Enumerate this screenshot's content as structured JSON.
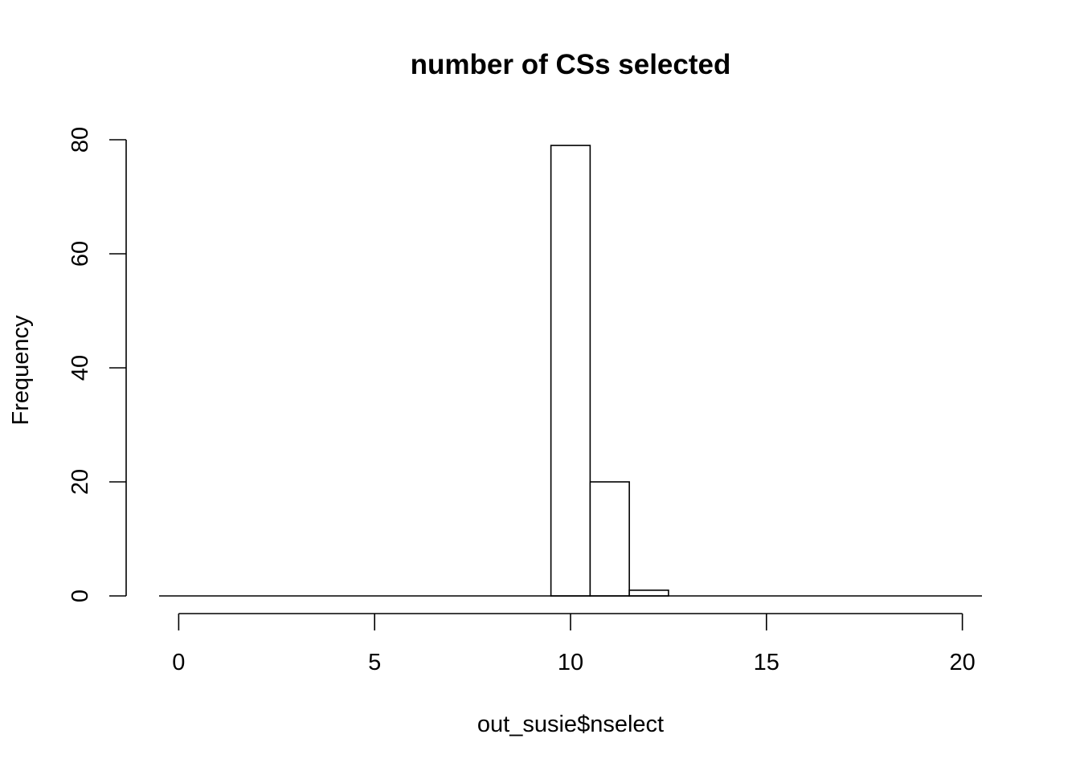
{
  "chart_data": {
    "type": "bar",
    "title": "number of CSs selected",
    "xlabel": "out_susie$nselect",
    "ylabel": "Frequency",
    "bin_edges": [
      -0.5,
      0.5,
      1.5,
      2.5,
      3.5,
      4.5,
      5.5,
      6.5,
      7.5,
      8.5,
      9.5,
      10.5,
      11.5,
      12.5,
      13.5,
      14.5,
      15.5,
      16.5,
      17.5,
      18.5,
      19.5,
      20.5
    ],
    "values": [
      0,
      0,
      0,
      0,
      0,
      0,
      0,
      0,
      0,
      0,
      79,
      20,
      1,
      0,
      0,
      0,
      0,
      0,
      0,
      0,
      0
    ],
    "xlim": [
      -0.5,
      20.5
    ],
    "ylim": [
      0,
      80
    ],
    "xticks": [
      0,
      5,
      10,
      15,
      20
    ],
    "xtick_labels": [
      "0",
      "5",
      "10",
      "15",
      "20"
    ],
    "yticks": [
      0,
      20,
      40,
      60,
      80
    ],
    "ytick_labels": [
      "0",
      "20",
      "40",
      "60",
      "80"
    ],
    "grid": false,
    "legend": "none",
    "colors": {
      "bar_fill": "#ffffff",
      "bar_stroke": "#000000",
      "axis": "#000000"
    }
  }
}
